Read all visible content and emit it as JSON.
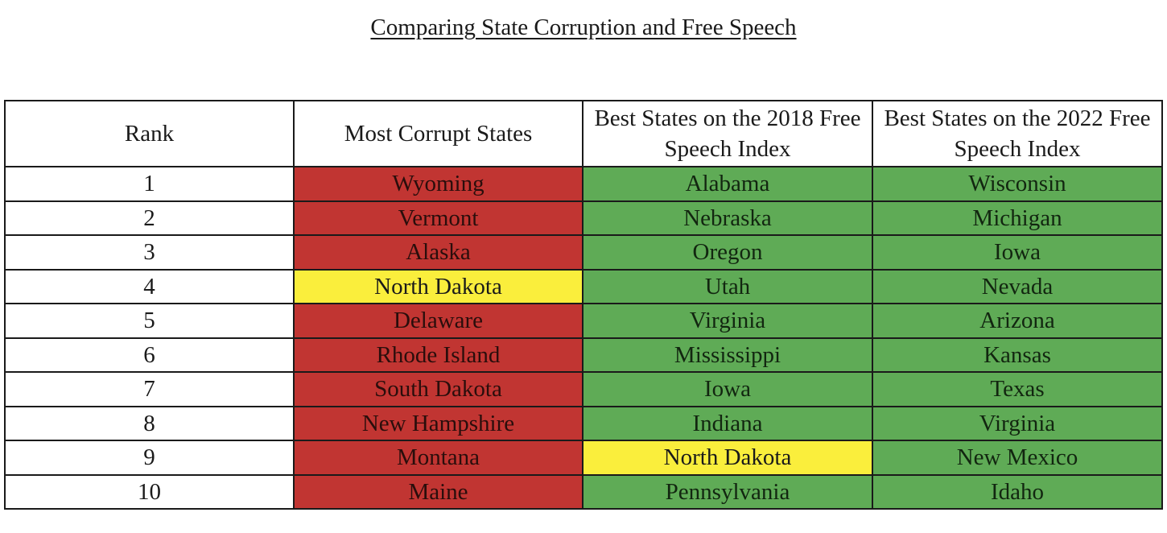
{
  "title": "Comparing State Corruption and Free Speech",
  "colors": {
    "red": "#c13532",
    "green": "#5fab56",
    "yellow": "#faee3c"
  },
  "table": {
    "headers": {
      "rank": "Rank",
      "corrupt": "Most Corrupt States",
      "fs2018": "Best States on the 2018 Free Speech Index",
      "fs2022": "Best States on the 2022 Free Speech Index"
    },
    "rows": [
      {
        "rank": "1",
        "corrupt": "Wyoming",
        "fs2018": "Alabama",
        "fs2022": "Wisconsin"
      },
      {
        "rank": "2",
        "corrupt": "Vermont",
        "fs2018": "Nebraska",
        "fs2022": "Michigan"
      },
      {
        "rank": "3",
        "corrupt": "Alaska",
        "fs2018": "Oregon",
        "fs2022": "Iowa"
      },
      {
        "rank": "4",
        "corrupt": "North Dakota",
        "fs2018": "Utah",
        "fs2022": "Nevada"
      },
      {
        "rank": "5",
        "corrupt": "Delaware",
        "fs2018": "Virginia",
        "fs2022": "Arizona"
      },
      {
        "rank": "6",
        "corrupt": "Rhode Island",
        "fs2018": "Mississippi",
        "fs2022": "Kansas"
      },
      {
        "rank": "7",
        "corrupt": "South Dakota",
        "fs2018": "Iowa",
        "fs2022": "Texas"
      },
      {
        "rank": "8",
        "corrupt": "New Hampshire",
        "fs2018": "Indiana",
        "fs2022": "Virginia"
      },
      {
        "rank": "9",
        "corrupt": "Montana",
        "fs2018": "North Dakota",
        "fs2022": "New Mexico"
      },
      {
        "rank": "10",
        "corrupt": "Maine",
        "fs2018": "Pennsylvania",
        "fs2022": "Idaho"
      }
    ]
  }
}
